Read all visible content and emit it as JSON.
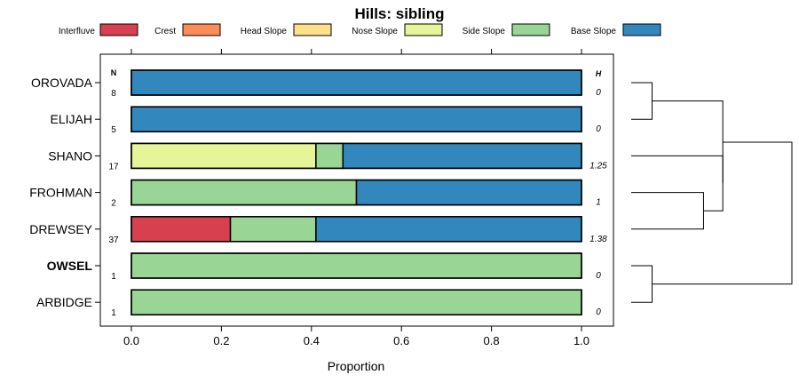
{
  "chart_data": {
    "type": "bar",
    "stacked": true,
    "orientation": "horizontal",
    "title": "Hills: sibling",
    "xlabel": "Proportion",
    "ylabel": "",
    "xlim": [
      0,
      1
    ],
    "x_ticks": [
      "0.0",
      "0.2",
      "0.4",
      "0.6",
      "0.8",
      "1.0"
    ],
    "legend_position": "top",
    "legend": [
      {
        "name": "Interfluve",
        "color": "#d7404f"
      },
      {
        "name": "Crest",
        "color": "#fc8d59"
      },
      {
        "name": "Head Slope",
        "color": "#fee08b"
      },
      {
        "name": "Nose Slope",
        "color": "#e6f598"
      },
      {
        "name": "Side Slope",
        "color": "#99d594"
      },
      {
        "name": "Base Slope",
        "color": "#3288bd"
      }
    ],
    "n_header": "N",
    "h_header": "H",
    "categories": [
      {
        "name": "OROVADA",
        "bold": false,
        "n": "8",
        "h": "0",
        "values": [
          0,
          0,
          0,
          0,
          0,
          1.0
        ]
      },
      {
        "name": "ELIJAH",
        "bold": false,
        "n": "5",
        "h": "0",
        "values": [
          0,
          0,
          0,
          0,
          0,
          1.0
        ]
      },
      {
        "name": "SHANO",
        "bold": false,
        "n": "17",
        "h": "1.25",
        "values": [
          0,
          0,
          0,
          0.41,
          0.06,
          0.53
        ]
      },
      {
        "name": "FROHMAN",
        "bold": false,
        "n": "2",
        "h": "1",
        "values": [
          0,
          0,
          0,
          0,
          0.5,
          0.5
        ]
      },
      {
        "name": "DREWSEY",
        "bold": false,
        "n": "37",
        "h": "1.38",
        "values": [
          0.22,
          0,
          0,
          0,
          0.19,
          0.59
        ]
      },
      {
        "name": "OWSEL",
        "bold": true,
        "n": "1",
        "h": "0",
        "values": [
          0,
          0,
          0,
          0,
          1.0,
          0
        ]
      },
      {
        "name": "ARBIDGE",
        "bold": false,
        "n": "1",
        "h": "0",
        "values": [
          0,
          0,
          0,
          0,
          1.0,
          0
        ]
      }
    ],
    "dendrogram": [
      {
        "merge": [
          0,
          1
        ],
        "height": 0.13
      },
      {
        "merge": [
          3,
          4
        ],
        "height": 0.45
      },
      {
        "merge": [
          2,
          "c1"
        ],
        "height": 0.57
      },
      {
        "merge": [
          "c0",
          "c2"
        ],
        "height": 0.57
      },
      {
        "merge": [
          5,
          6
        ],
        "height": 0.13
      },
      {
        "merge": [
          "c3",
          "c4"
        ],
        "height": 1.0
      }
    ]
  }
}
